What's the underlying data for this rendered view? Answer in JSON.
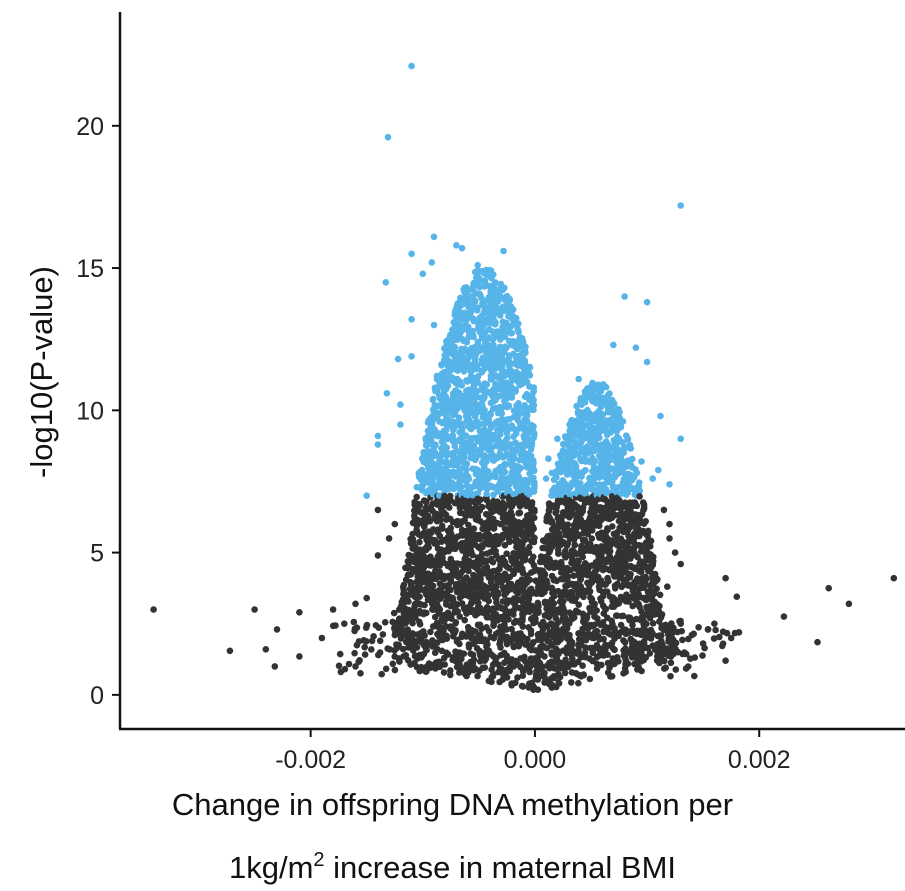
{
  "chart_data": {
    "type": "scatter",
    "title": "",
    "ylabel": "-log10(P-value)",
    "xlabel": {
      "line1": "Change in offspring DNA methylation per",
      "line2_pre": "1kg/m",
      "line2_sup": "2",
      "line2_post": " increase in maternal BMI"
    },
    "xlim": [
      -0.0037,
      0.0033
    ],
    "ylim": [
      -1.2,
      24.0
    ],
    "x_ticks": [
      -0.002,
      0.0,
      0.002
    ],
    "x_tick_labels": [
      "-0.002",
      "0.000",
      "0.002"
    ],
    "y_ticks": [
      0,
      5,
      10,
      15,
      20
    ],
    "y_tick_labels": [
      "0",
      "5",
      "10",
      "15",
      "20"
    ],
    "grid": false,
    "significance_threshold": 7.0,
    "colors": {
      "significant": "#56B4E9",
      "non_significant": "#333333",
      "axis": "#111111"
    },
    "series": [
      {
        "name": "significant",
        "points": [
          [
            -0.0011,
            22.1
          ],
          [
            -0.00131,
            19.6
          ],
          [
            0.0013,
            17.2
          ],
          [
            -0.0009,
            16.1
          ],
          [
            -0.0007,
            15.8
          ],
          [
            -0.00065,
            15.7
          ],
          [
            -0.00028,
            15.6
          ],
          [
            -0.0011,
            15.5
          ],
          [
            -0.00092,
            15.2
          ],
          [
            -0.00051,
            15.1
          ],
          [
            -0.001,
            14.8
          ],
          [
            -0.00133,
            14.5
          ],
          [
            0.0008,
            14.0
          ],
          [
            0.001,
            13.8
          ],
          [
            -0.0011,
            13.2
          ],
          [
            -0.00122,
            11.8
          ],
          [
            -0.00132,
            10.6
          ],
          [
            -0.0014,
            9.1
          ],
          [
            -0.0014,
            8.8
          ],
          [
            -0.0015,
            7.0
          ],
          [
            0.0007,
            12.3
          ],
          [
            0.0009,
            12.2
          ],
          [
            0.001,
            11.7
          ],
          [
            0.00039,
            11.1
          ],
          [
            0.00112,
            9.8
          ],
          [
            0.0013,
            9.0
          ],
          [
            -0.0001,
            9.1
          ],
          [
            0.0002,
            9.0
          ],
          [
            0.0003,
            8.8
          ],
          [
            0.00012,
            8.3
          ],
          [
            0.00015,
            7.8
          ],
          [
            0.0001,
            7.6
          ],
          [
            -0.0002,
            7.5
          ],
          [
            0.0011,
            7.9
          ],
          [
            0.0012,
            7.4
          ],
          [
            0.00105,
            7.6
          ],
          [
            0.00095,
            8.2
          ],
          [
            -0.0012,
            10.2
          ],
          [
            -0.0012,
            9.5
          ],
          [
            -0.0011,
            11.9
          ],
          [
            -0.0009,
            13.0
          ]
        ]
      },
      {
        "name": "non-significant",
        "points": [
          [
            -0.0034,
            3.0
          ],
          [
            -0.00272,
            1.55
          ],
          [
            -0.0025,
            3.0
          ],
          [
            -0.0023,
            2.3
          ],
          [
            -0.00232,
            1.0
          ],
          [
            -0.0024,
            1.6
          ],
          [
            -0.0021,
            2.9
          ],
          [
            -0.0021,
            1.35
          ],
          [
            -0.0019,
            2.0
          ],
          [
            -0.0018,
            3.0
          ],
          [
            -0.0017,
            2.5
          ],
          [
            -0.0016,
            3.2
          ],
          [
            -0.0015,
            3.4
          ],
          [
            -0.0014,
            4.9
          ],
          [
            -0.0013,
            5.5
          ],
          [
            -0.00125,
            6.0
          ],
          [
            -0.0014,
            6.5
          ],
          [
            -0.00138,
            1.9
          ],
          [
            -0.0016,
            1.0
          ],
          [
            0.0032,
            4.1
          ],
          [
            0.0028,
            3.2
          ],
          [
            0.00262,
            3.75
          ],
          [
            0.00252,
            1.85
          ],
          [
            0.00222,
            2.75
          ],
          [
            0.00182,
            2.2
          ],
          [
            0.0018,
            3.45
          ],
          [
            0.0017,
            4.1
          ],
          [
            0.00175,
            2.0
          ],
          [
            0.0016,
            2.5
          ],
          [
            0.0015,
            1.8
          ],
          [
            0.0014,
            2.1
          ],
          [
            0.0013,
            2.5
          ],
          [
            0.0017,
            1.2
          ],
          [
            0.0012,
            6.0
          ],
          [
            0.00115,
            6.5
          ],
          [
            0.0012,
            5.5
          ],
          [
            0.00125,
            5.0
          ],
          [
            0.0013,
            4.6
          ],
          [
            0.00118,
            3.8
          ]
        ]
      }
    ]
  }
}
